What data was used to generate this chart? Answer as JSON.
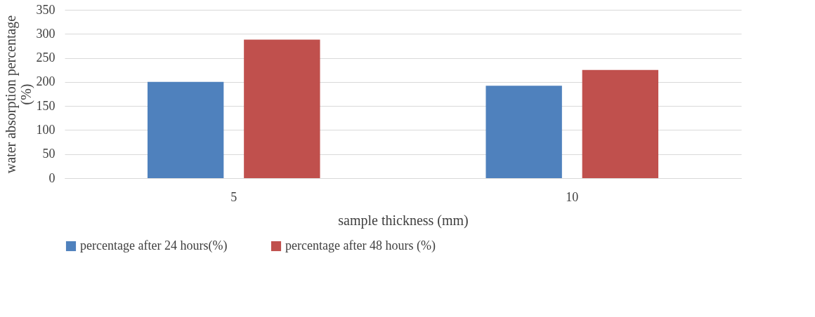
{
  "chart_data": {
    "type": "bar",
    "xlabel": "sample thickness (mm)",
    "ylabel": "water absorption percentage (%)",
    "categories": [
      "5",
      "10"
    ],
    "series": [
      {
        "name": "percentage after 24 hours(%)",
        "color": "#4f81bd",
        "values": [
          200,
          192
        ]
      },
      {
        "name": "percentage after 48 hours (%)",
        "color": "#c0504d",
        "values": [
          288,
          225
        ]
      }
    ],
    "ylim": [
      0,
      350
    ],
    "yticks": [
      0,
      50,
      100,
      150,
      200,
      250,
      300,
      350
    ],
    "grid": "y",
    "legend": "bottom"
  }
}
